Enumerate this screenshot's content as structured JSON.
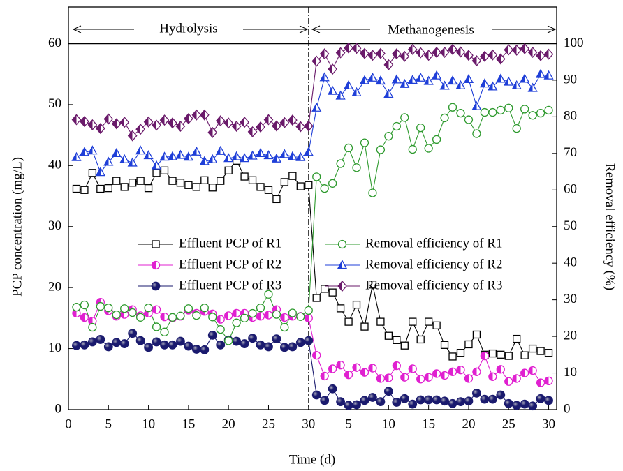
{
  "chart_data": {
    "type": "line",
    "xlabel": "Time (d)",
    "ylabel": "PCP concentration (mg/L)",
    "y2label": "Removal efficiency (%)",
    "annotations": [
      "Hydrolysis",
      "Methanogenesis"
    ],
    "phase_boundary": 30,
    "hline": 60,
    "xlim": [
      0,
      61
    ],
    "ylim": [
      0,
      66
    ],
    "y2lim": [
      0,
      110
    ],
    "xticks": [
      0,
      5,
      10,
      15,
      20,
      25,
      30,
      {
        "value": 35,
        "label": "5"
      },
      {
        "value": 40,
        "label": "10"
      },
      {
        "value": 45,
        "label": "15"
      },
      {
        "value": 50,
        "label": "20"
      },
      {
        "value": 55,
        "label": "25"
      },
      {
        "value": 60,
        "label": "30"
      }
    ],
    "yticks": [
      0,
      10,
      20,
      30,
      40,
      50,
      60
    ],
    "y2ticks": [
      0,
      10,
      20,
      30,
      40,
      50,
      60,
      70,
      80,
      90,
      100
    ],
    "x": [
      1,
      2,
      3,
      4,
      5,
      6,
      7,
      8,
      9,
      10,
      11,
      12,
      13,
      14,
      15,
      16,
      17,
      18,
      19,
      20,
      21,
      22,
      23,
      24,
      25,
      26,
      27,
      28,
      29,
      30,
      31,
      32,
      33,
      34,
      35,
      36,
      37,
      38,
      39,
      40,
      41,
      42,
      43,
      44,
      45,
      46,
      47,
      48,
      49,
      50,
      51,
      52,
      53,
      54,
      55,
      56,
      57,
      58,
      59,
      60
    ],
    "series": [
      {
        "name": "Effluent PCP of R1",
        "color": "#000000",
        "marker": "square",
        "values": [
          36.2,
          36,
          38.8,
          36.2,
          36.3,
          37.5,
          36.5,
          37.2,
          37.5,
          36.3,
          38.8,
          39.2,
          37.5,
          37.2,
          36.8,
          36.5,
          37.6,
          36.4,
          37.5,
          39.2,
          40.8,
          38.2,
          37.6,
          36.5,
          36,
          34.5,
          37.3,
          38.3,
          36.6,
          36.8,
          18.3,
          19.8,
          19.2,
          16.6,
          14.4,
          17.2,
          13.6,
          20.5,
          14.4,
          12.1,
          11.4,
          10.5,
          14.4,
          11.5,
          14.4,
          13.8,
          10.6,
          8.7,
          9.3,
          10.7,
          12.3,
          9,
          9.2,
          9,
          8.8,
          11.6,
          8.9,
          10,
          9.6,
          9.3
        ]
      },
      {
        "name": "Effluent PCP of R2",
        "color": "#e020d0",
        "marker": "half-circle",
        "values": [
          15.8,
          15.1,
          14.5,
          17.6,
          16.2,
          15.3,
          15.6,
          16.4,
          15.4,
          15.8,
          16.4,
          15.2,
          15,
          15.3,
          16.3,
          15.8,
          16.1,
          15.7,
          14.8,
          15.4,
          15.8,
          15.8,
          15.1,
          15.3,
          15.5,
          16.4,
          15.1,
          15.3,
          15.3,
          15,
          8.9,
          5.5,
          6.7,
          7.3,
          5.7,
          6.9,
          6.1,
          6.8,
          5.1,
          5.2,
          7.2,
          5.3,
          6.7,
          5,
          5.3,
          5.9,
          5.6,
          6.2,
          6.5,
          5.1,
          6.2,
          8.8,
          5.4,
          6.6,
          4.6,
          5.1,
          6,
          6.4,
          4.4,
          4.7
        ]
      },
      {
        "name": "Effluent PCP of R3",
        "color": "#1a1a6e",
        "marker": "ball",
        "values": [
          10.5,
          10.6,
          11.1,
          11.5,
          10.3,
          11,
          10.8,
          12.5,
          11.3,
          10.2,
          11.1,
          10.6,
          10.6,
          11.2,
          10.4,
          9.9,
          9.8,
          12.2,
          10.6,
          11.4,
          11.2,
          10.8,
          11.7,
          10.6,
          10.3,
          11.6,
          10.2,
          10.3,
          11,
          11.3,
          2.4,
          1.5,
          3.4,
          1.3,
          0.7,
          0.8,
          1.5,
          2,
          1.3,
          3,
          1.2,
          1.8,
          0.9,
          1.6,
          1.6,
          1.6,
          1.4,
          1,
          1.3,
          1.4,
          2.7,
          1.7,
          1.7,
          2.4,
          1,
          0.7,
          0.9,
          0.6,
          1.8,
          1.5
        ]
      },
      {
        "name": "Removal efficiency of R1",
        "color": "#2e9a2e",
        "marker": "circle",
        "axis": "y2",
        "values": [
          28,
          28.6,
          22.5,
          28.2,
          27.8,
          25.9,
          27.6,
          26.5,
          25.2,
          27.8,
          22.6,
          21.2,
          25.2,
          25.6,
          27.6,
          25.7,
          27.8,
          25.3,
          21.9,
          18.8,
          23.7,
          25,
          26.3,
          27.8,
          31.5,
          26,
          22.5,
          26.4,
          25.4,
          27.1,
          63.6,
          60.4,
          61.8,
          67.2,
          71.5,
          66.1,
          72.9,
          59.2,
          71,
          74.7,
          77.4,
          79.8,
          71.1,
          77,
          71.4,
          73.8,
          79.7,
          82.6,
          81,
          79.2,
          75.4,
          81.2,
          81.2,
          81.8,
          82.4,
          76.8,
          82.1,
          80.4,
          81,
          81.8
        ]
      },
      {
        "name": "Removal efficiency of R2",
        "color": "#1f3fd8",
        "marker": "triangle",
        "axis": "y2",
        "values": [
          68.9,
          70.3,
          70.7,
          64.8,
          67.6,
          70,
          68.3,
          67.4,
          70.7,
          69.4,
          66.6,
          69,
          69.1,
          69.5,
          69,
          70.4,
          67.8,
          68.3,
          70.6,
          68.6,
          69.1,
          68.6,
          69.3,
          70,
          69.4,
          68.5,
          69.7,
          69.1,
          68.9,
          70.3,
          82.4,
          90.7,
          87,
          85.7,
          88.5,
          86.6,
          89.9,
          90.6,
          89.8,
          86.2,
          90.1,
          88.9,
          90,
          90.6,
          89.7,
          91.2,
          88.4,
          89.8,
          88.5,
          90.2,
          82.8,
          89,
          88.2,
          90.3,
          89.5,
          88.5,
          90.3,
          87.8,
          91.6,
          91.2
        ]
      },
      {
        "name": "Removal efficiency of R3",
        "color": "#6a1a6a",
        "marker": "diamond",
        "axis": "y2",
        "values": [
          79.2,
          78.7,
          77.8,
          76.8,
          79.4,
          78.1,
          78.5,
          74.8,
          76.6,
          78.6,
          77.7,
          79.1,
          78.3,
          77.4,
          79.5,
          80.5,
          80.5,
          75.7,
          78.9,
          78.3,
          77.4,
          78.5,
          75.9,
          77.2,
          79.2,
          77.5,
          78.4,
          79.1,
          77.3,
          77.5,
          95.2,
          97.2,
          93,
          97.5,
          98.8,
          98.7,
          97.3,
          96.8,
          97.3,
          94.2,
          97.2,
          96.5,
          98.4,
          97.5,
          96.8,
          97.6,
          97.6,
          98.4,
          97.7,
          96.8,
          95.3,
          96.5,
          96.9,
          95.8,
          98.3,
          98.2,
          98.6,
          97.6,
          96.7,
          97.1
        ]
      }
    ]
  }
}
